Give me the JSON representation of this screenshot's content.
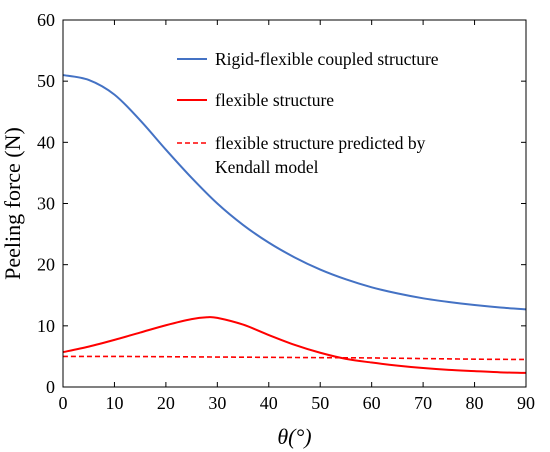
{
  "chart_data": {
    "type": "line",
    "xlabel": "θ(°)",
    "ylabel": "Peeling force (N)",
    "xlim": [
      0,
      90
    ],
    "ylim": [
      0,
      60
    ],
    "xticks": [
      0,
      10,
      20,
      30,
      40,
      50,
      60,
      70,
      80,
      90
    ],
    "yticks": [
      0,
      10,
      20,
      30,
      40,
      50,
      60
    ],
    "grid": false,
    "legend_position": "top-right",
    "series": [
      {
        "name": "Rigid-flexible coupled structure",
        "color": "#4472c4",
        "style": "solid",
        "x": [
          0,
          5,
          10,
          15,
          20,
          25,
          30,
          35,
          40,
          45,
          50,
          55,
          60,
          65,
          70,
          75,
          80,
          85,
          90
        ],
        "y": [
          51,
          50.2,
          47.8,
          43.6,
          38.8,
          34.2,
          30,
          26.5,
          23.6,
          21.2,
          19.2,
          17.6,
          16.3,
          15.3,
          14.5,
          13.9,
          13.4,
          13.0,
          12.7
        ]
      },
      {
        "name": "flexible structure",
        "color": "#ff0000",
        "style": "solid",
        "x": [
          0,
          5,
          10,
          15,
          20,
          25,
          28,
          30,
          35,
          40,
          45,
          50,
          55,
          60,
          65,
          70,
          75,
          80,
          85,
          90
        ],
        "y": [
          5.7,
          6.6,
          7.7,
          8.9,
          10.1,
          11.1,
          11.4,
          11.3,
          10.2,
          8.5,
          6.9,
          5.6,
          4.6,
          4.0,
          3.5,
          3.1,
          2.8,
          2.6,
          2.4,
          2.3
        ]
      },
      {
        "name": "flexible structure predicted by Kendall model",
        "color": "#ff0000",
        "style": "dashed",
        "x": [
          0,
          10,
          20,
          30,
          40,
          50,
          60,
          70,
          80,
          90
        ],
        "y": [
          5.0,
          5.0,
          4.95,
          4.9,
          4.85,
          4.8,
          4.75,
          4.65,
          4.55,
          4.5
        ]
      }
    ],
    "legend": [
      {
        "lines": [
          "Rigid-flexible coupled structure"
        ]
      },
      {
        "lines": [
          "flexible structure"
        ]
      },
      {
        "lines": [
          "flexible structure predicted by",
          "Kendall model"
        ]
      }
    ]
  }
}
